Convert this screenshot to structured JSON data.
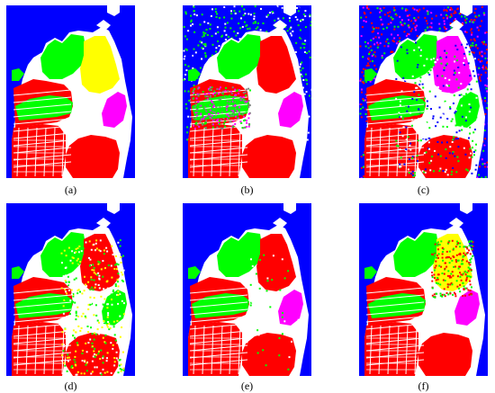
{
  "figure": {
    "palette": {
      "water": "#0000ff",
      "white": "#ffffff",
      "red": "#ff0000",
      "green": "#00ff00",
      "yellow": "#ffff00",
      "magenta": "#ff00ff",
      "gray": "#808080"
    },
    "panels": [
      {
        "caption": "(a)",
        "variant": "ground-truth"
      },
      {
        "caption": "(b)",
        "variant": "noisy-green"
      },
      {
        "caption": "(c)",
        "variant": "noisy-red"
      },
      {
        "caption": "(d)",
        "variant": "speckled-red"
      },
      {
        "caption": "(e)",
        "variant": "clean-red"
      },
      {
        "caption": "(f)",
        "variant": "speckled-yellow"
      }
    ]
  }
}
